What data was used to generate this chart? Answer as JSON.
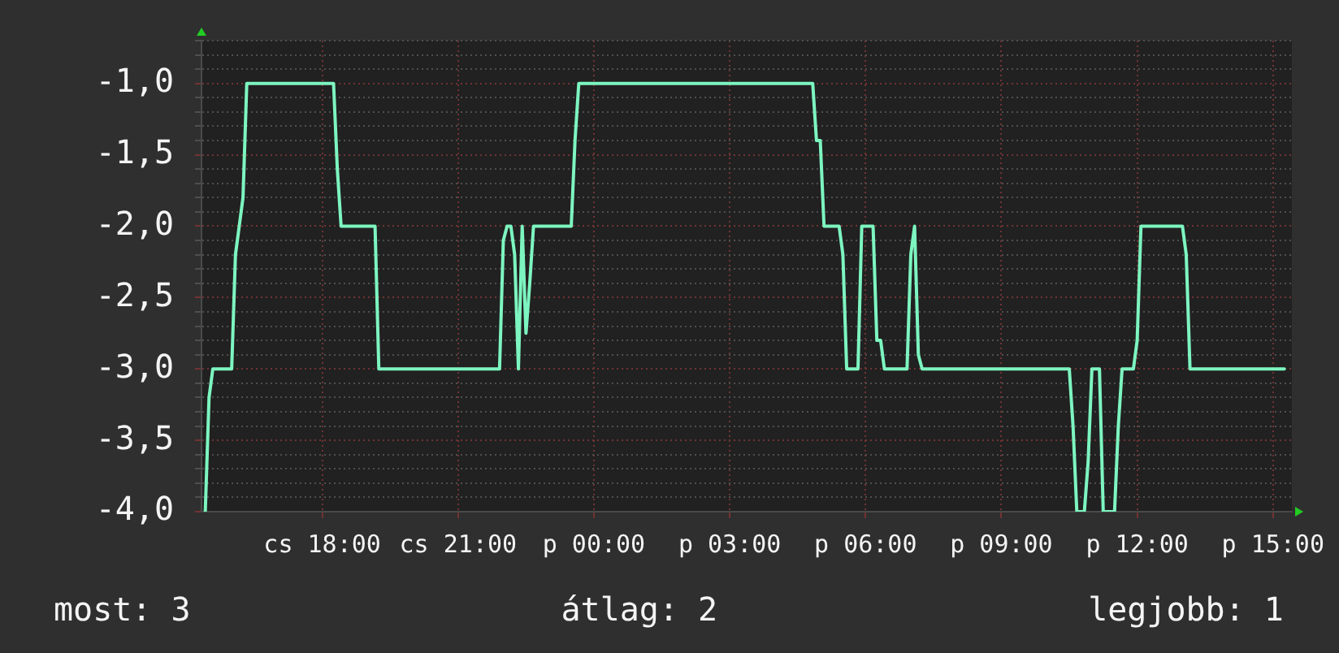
{
  "chart_data": {
    "type": "line",
    "categories": [
      null,
      null,
      null,
      null,
      null,
      null,
      null,
      null,
      null,
      null,
      null,
      null,
      null,
      null,
      null,
      null,
      null,
      null,
      null,
      null,
      null,
      null,
      null,
      null,
      null,
      null,
      null,
      null,
      null,
      null,
      null,
      null,
      "cs 18:00",
      null,
      null,
      null,
      null,
      null,
      null,
      null,
      null,
      null,
      null,
      null,
      null,
      null,
      null,
      null,
      null,
      null,
      null,
      null,
      null,
      null,
      null,
      null,
      null,
      null,
      null,
      null,
      null,
      null,
      null,
      null,
      null,
      null,
      null,
      null,
      "cs 21:00",
      null,
      null,
      null,
      null,
      null,
      null,
      null,
      null,
      null,
      null,
      null,
      null,
      null,
      null,
      null,
      null,
      null,
      null,
      null,
      null,
      null,
      null,
      null,
      null,
      null,
      null,
      null,
      null,
      null,
      null,
      null,
      null,
      null,
      null,
      null,
      "p 00:00",
      null,
      null,
      null,
      null,
      null,
      null,
      null,
      null,
      null,
      null,
      null,
      null,
      null,
      null,
      null,
      null,
      null,
      null,
      null,
      null,
      null,
      null,
      null,
      null,
      null,
      null,
      null,
      null,
      null,
      null,
      null,
      null,
      null,
      null,
      null,
      "p 03:00",
      null,
      null,
      null,
      null,
      null,
      null,
      null,
      null,
      null,
      null,
      null,
      null,
      null,
      null,
      null,
      null,
      null,
      null,
      null,
      null,
      null,
      null,
      null,
      null,
      null,
      null,
      null,
      null,
      null,
      null,
      null,
      null,
      null,
      null,
      null,
      "p 06:00",
      null,
      null,
      null,
      null,
      null,
      null,
      null,
      null,
      null,
      null,
      null,
      null,
      null,
      null,
      null,
      null,
      null,
      null,
      null,
      null,
      null,
      null,
      null,
      null,
      null,
      null,
      null,
      null,
      null,
      null,
      null,
      null,
      null,
      null,
      null,
      "p 09:00",
      null,
      null,
      null,
      null,
      null,
      null,
      null,
      null,
      null,
      null,
      null,
      null,
      null,
      null,
      null,
      null,
      null,
      null,
      null,
      null,
      null,
      null,
      null,
      null,
      null,
      null,
      null,
      null,
      null,
      null,
      null,
      null,
      null,
      null,
      null,
      "p 12:00",
      null,
      null,
      null,
      null,
      null,
      null,
      null,
      null,
      null,
      null,
      null,
      null,
      null,
      null,
      null,
      null,
      null,
      null,
      null,
      null,
      null,
      null,
      null,
      null,
      null,
      null,
      null,
      null,
      null,
      null,
      null,
      null,
      null,
      null,
      null,
      "p 15:00",
      null,
      null,
      null,
      null,
      null
    ],
    "series": [
      {
        "color": "#7df5c0",
        "values": [
          null,
          -4.0,
          -3.2,
          -3.0,
          -3.0,
          -3.0,
          -3.0,
          -3.0,
          -3.0,
          -2.2,
          -2.0,
          -1.8,
          -1.0,
          -1.0,
          -1.0,
          -1.0,
          -1.0,
          -1.0,
          -1.0,
          -1.0,
          -1.0,
          -1.0,
          -1.0,
          -1.0,
          -1.0,
          -1.0,
          -1.0,
          -1.0,
          -1.0,
          -1.0,
          -1.0,
          -1.0,
          -1.0,
          -1.0,
          -1.0,
          -1.0,
          -1.6,
          -2.0,
          -2.0,
          -2.0,
          -2.0,
          -2.0,
          -2.0,
          -2.0,
          -2.0,
          -2.0,
          -2.0,
          -3.0,
          -3.0,
          -3.0,
          -3.0,
          -3.0,
          -3.0,
          -3.0,
          -3.0,
          -3.0,
          -3.0,
          -3.0,
          -3.0,
          -3.0,
          -3.0,
          -3.0,
          -3.0,
          -3.0,
          -3.0,
          -3.0,
          -3.0,
          -3.0,
          -3.0,
          -3.0,
          -3.0,
          -3.0,
          -3.0,
          -3.0,
          -3.0,
          -3.0,
          -3.0,
          -3.0,
          -3.0,
          -3.0,
          -2.1,
          -2.0,
          -2.0,
          -2.2,
          -3.0,
          -2.0,
          -2.75,
          -2.4,
          -2.0,
          -2.0,
          -2.0,
          -2.0,
          -2.0,
          -2.0,
          -2.0,
          -2.0,
          -2.0,
          -2.0,
          -2.0,
          -1.4,
          -1.0,
          -1.0,
          -1.0,
          -1.0,
          -1.0,
          -1.0,
          -1.0,
          -1.0,
          -1.0,
          -1.0,
          -1.0,
          -1.0,
          -1.0,
          -1.0,
          -1.0,
          -1.0,
          -1.0,
          -1.0,
          -1.0,
          -1.0,
          -1.0,
          -1.0,
          -1.0,
          -1.0,
          -1.0,
          -1.0,
          -1.0,
          -1.0,
          -1.0,
          -1.0,
          -1.0,
          -1.0,
          -1.0,
          -1.0,
          -1.0,
          -1.0,
          -1.0,
          -1.0,
          -1.0,
          -1.0,
          -1.0,
          -1.0,
          -1.0,
          -1.0,
          -1.0,
          -1.0,
          -1.0,
          -1.0,
          -1.0,
          -1.0,
          -1.0,
          -1.0,
          -1.0,
          -1.0,
          -1.0,
          -1.0,
          -1.0,
          -1.0,
          -1.0,
          -1.0,
          -1.0,
          -1.0,
          -1.0,
          -1.4,
          -1.4,
          -2.0,
          -2.0,
          -2.0,
          -2.0,
          -2.0,
          -2.2,
          -3.0,
          -3.0,
          -3.0,
          -3.0,
          -2.0,
          -2.0,
          -2.0,
          -2.0,
          -2.8,
          -2.8,
          -3.0,
          -3.0,
          -3.0,
          -3.0,
          -3.0,
          -3.0,
          -3.0,
          -2.2,
          -2.0,
          -2.9,
          -3.0,
          -3.0,
          -3.0,
          -3.0,
          -3.0,
          -3.0,
          -3.0,
          -3.0,
          -3.0,
          -3.0,
          -3.0,
          -3.0,
          -3.0,
          -3.0,
          -3.0,
          -3.0,
          -3.0,
          -3.0,
          -3.0,
          -3.0,
          -3.0,
          -3.0,
          -3.0,
          -3.0,
          -3.0,
          -3.0,
          -3.0,
          -3.0,
          -3.0,
          -3.0,
          -3.0,
          -3.0,
          -3.0,
          -3.0,
          -3.0,
          -3.0,
          -3.0,
          -3.0,
          -3.0,
          -3.0,
          -3.4,
          -4.0,
          -4.0,
          -4.0,
          -3.65,
          -3.0,
          -3.0,
          -3.0,
          -4.0,
          -4.0,
          -4.0,
          -4.0,
          -3.4,
          -3.0,
          -3.0,
          -3.0,
          -3.0,
          -2.8,
          -2.0,
          -2.0,
          -2.0,
          -2.0,
          -2.0,
          -2.0,
          -2.0,
          -2.0,
          -2.0,
          -2.0,
          -2.0,
          -2.0,
          -2.2,
          -3.0,
          -3.0,
          -3.0,
          -3.0,
          -3.0,
          -3.0,
          -3.0,
          -3.0,
          -3.0,
          -3.0,
          -3.0,
          -3.0,
          -3.0,
          -3.0,
          -3.0,
          -3.0,
          -3.0,
          -3.0,
          -3.0,
          -3.0,
          -3.0,
          -3.0,
          -3.0,
          -3.0,
          -3.0,
          -3.0,
          null,
          null
        ]
      }
    ],
    "ylim": [
      -4,
      -0.7
    ],
    "yticks": [
      {
        "value": -4,
        "label": "-4,0"
      },
      {
        "value": -3.9,
        "label": null
      },
      {
        "value": -3.8,
        "label": null
      },
      {
        "value": -3.7,
        "label": null
      },
      {
        "value": -3.6,
        "label": null
      },
      {
        "value": -3.5,
        "label": "-3,5"
      },
      {
        "value": -3.4,
        "label": null
      },
      {
        "value": -3.3,
        "label": null
      },
      {
        "value": -3.2,
        "label": null
      },
      {
        "value": -3.1,
        "label": null
      },
      {
        "value": -3,
        "label": "-3,0"
      },
      {
        "value": -2.9,
        "label": null
      },
      {
        "value": -2.8,
        "label": null
      },
      {
        "value": -2.7,
        "label": null
      },
      {
        "value": -2.6,
        "label": null
      },
      {
        "value": -2.5,
        "label": "-2,5"
      },
      {
        "value": -2.4,
        "label": null
      },
      {
        "value": -2.3,
        "label": null
      },
      {
        "value": -2.2,
        "label": null
      },
      {
        "value": -2.1,
        "label": null
      },
      {
        "value": -2,
        "label": "-2,0"
      },
      {
        "value": -1.9,
        "label": null
      },
      {
        "value": -1.8,
        "label": null
      },
      {
        "value": -1.7,
        "label": null
      },
      {
        "value": -1.6,
        "label": null
      },
      {
        "value": -1.5,
        "label": "-1,5"
      },
      {
        "value": -1.4,
        "label": null
      },
      {
        "value": -1.3,
        "label": null
      },
      {
        "value": -1.2,
        "label": null
      },
      {
        "value": -1.1,
        "label": null
      },
      {
        "value": -1,
        "label": "-1,0"
      },
      {
        "value": -0.9,
        "label": null
      },
      {
        "value": -0.8,
        "label": null
      },
      {
        "value": -0.7,
        "label": null
      }
    ],
    "grid": true,
    "annotations": [
      "most: 3",
      "átlag: 2",
      "legjobb: 1"
    ]
  }
}
